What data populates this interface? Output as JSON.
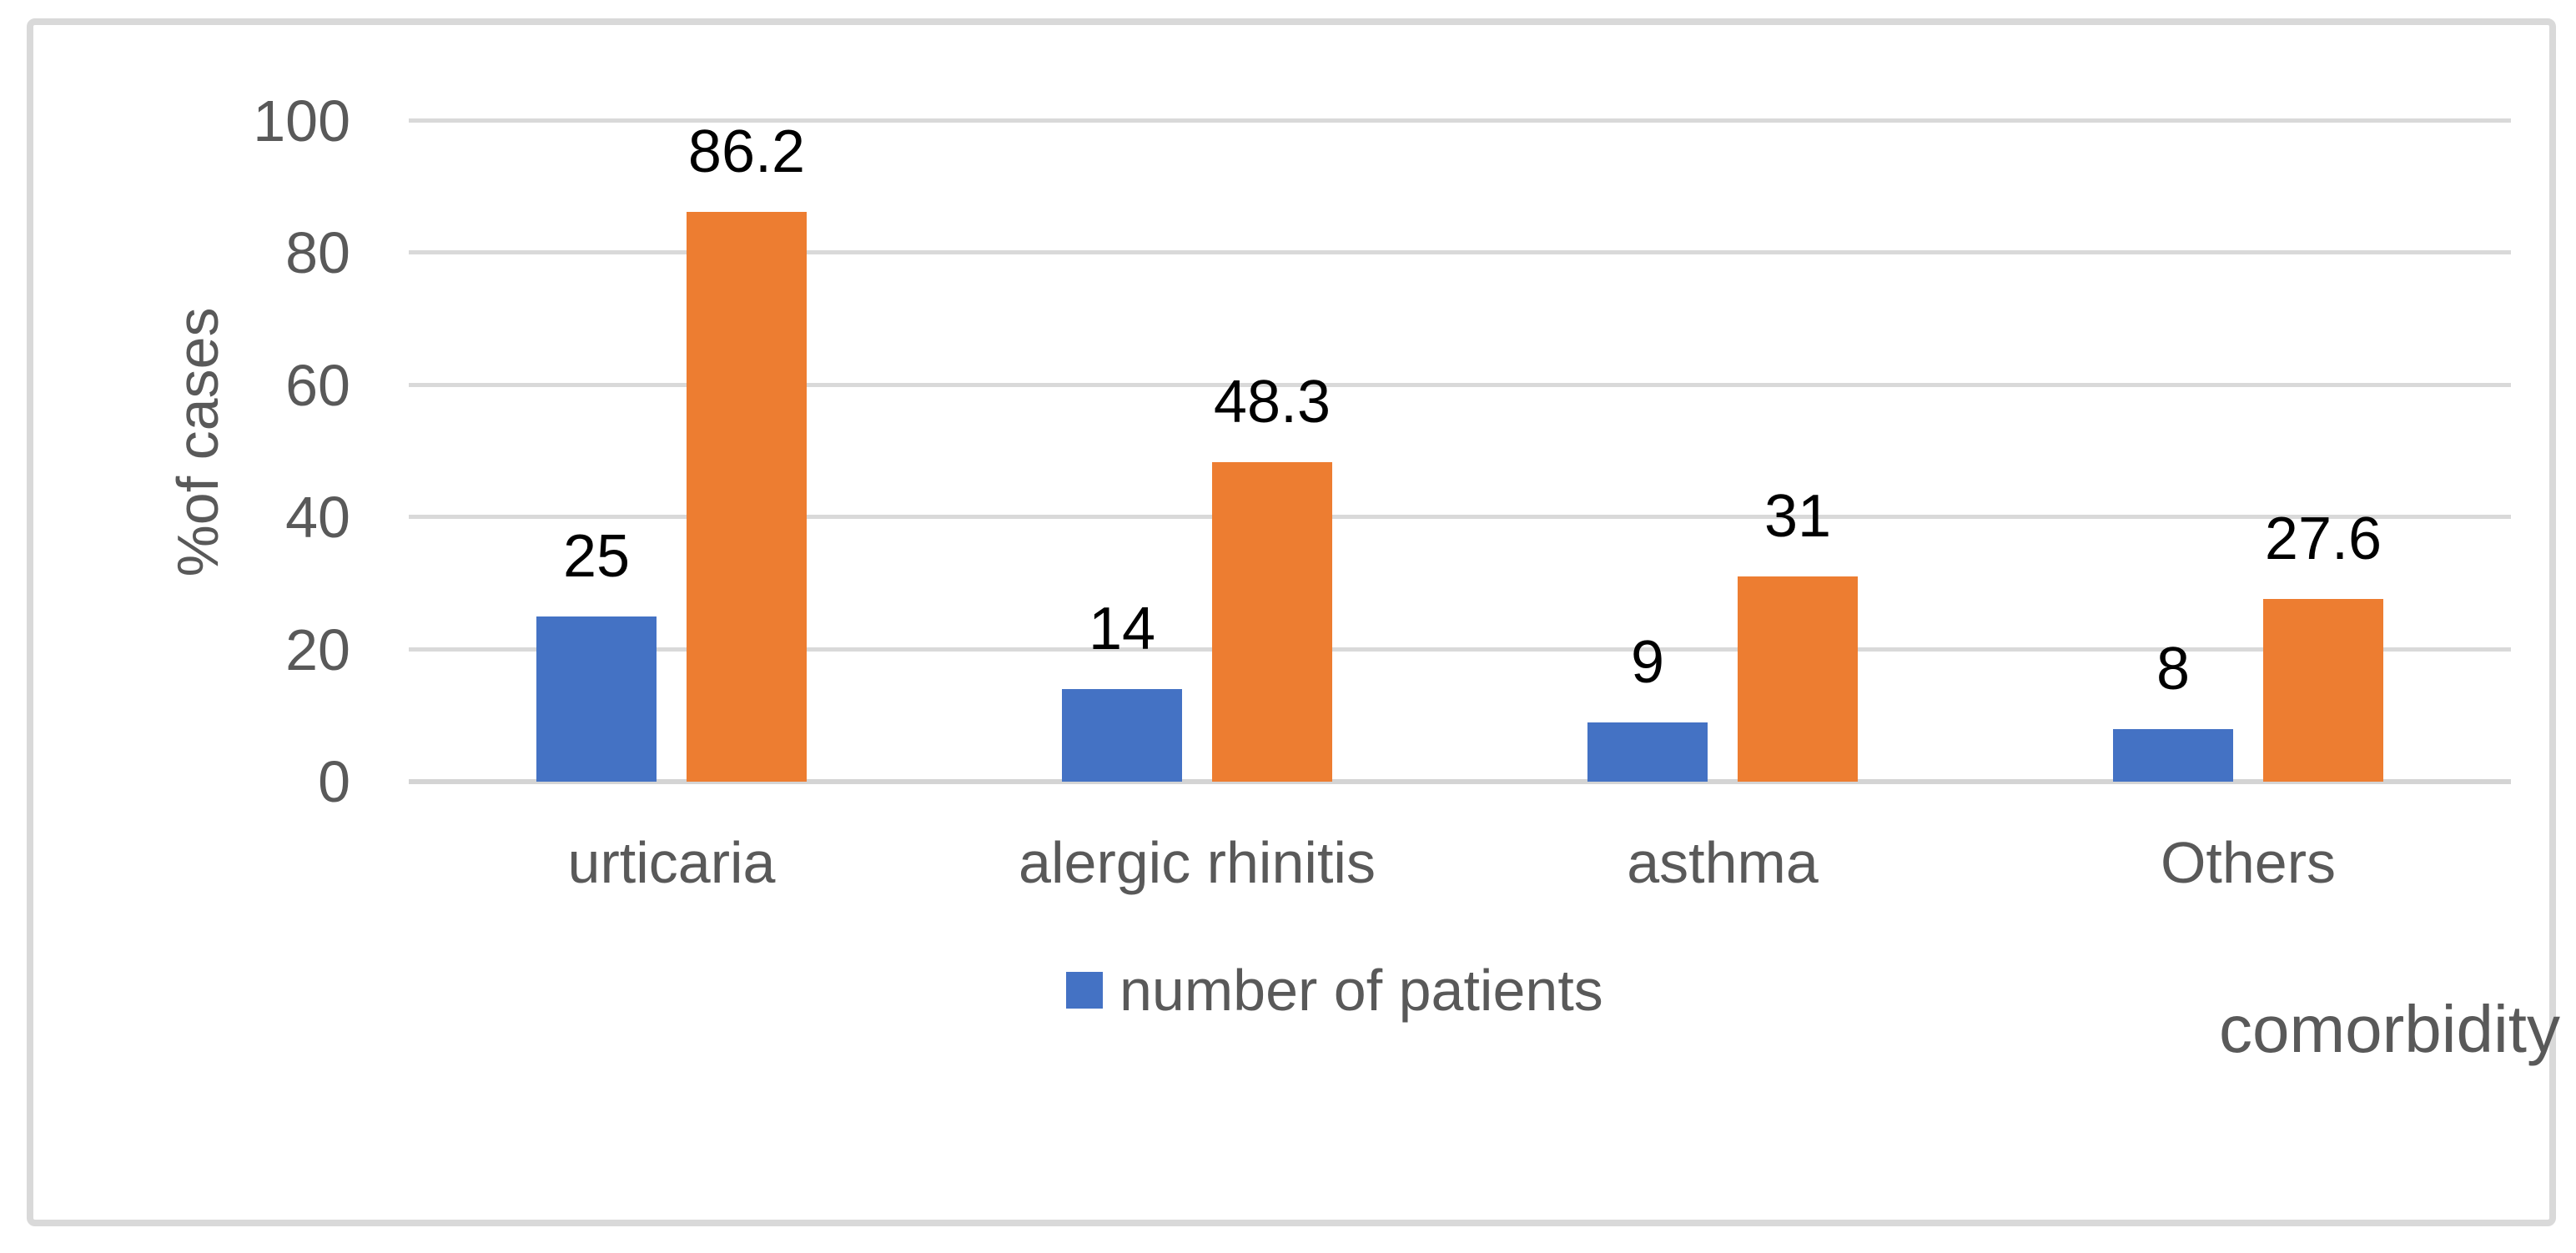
{
  "chart_data": {
    "type": "bar",
    "title": "",
    "categories": [
      "urticaria",
      "alergic rhinitis",
      "asthma",
      "Others"
    ],
    "series": [
      {
        "legend_label": "number of patients",
        "color": "#4472C4",
        "values": [
          25,
          14,
          9,
          8
        ],
        "data_labels": [
          "25",
          "14",
          "9",
          "8"
        ]
      },
      {
        "legend_label": "",
        "color": "#ED7D31",
        "values": [
          86.2,
          48.3,
          31,
          27.6
        ],
        "data_labels": [
          "86.2",
          "48.3",
          "31",
          "27.6"
        ]
      }
    ],
    "xlabel": "comorbidity",
    "ylabel": "%of cases",
    "ylim": [
      0,
      100
    ],
    "yticks": [
      0,
      20,
      40,
      60,
      80,
      100
    ],
    "grid": true,
    "legend": {
      "position": "bottom",
      "entries": [
        {
          "label": "number of patients",
          "color": "#4472C4"
        }
      ]
    }
  },
  "colors": {
    "axis_text": "#595959",
    "data_label": "#000000",
    "gridline": "#D9D9D9",
    "frame_border": "#D9D9D9",
    "background": "#FFFFFF"
  }
}
